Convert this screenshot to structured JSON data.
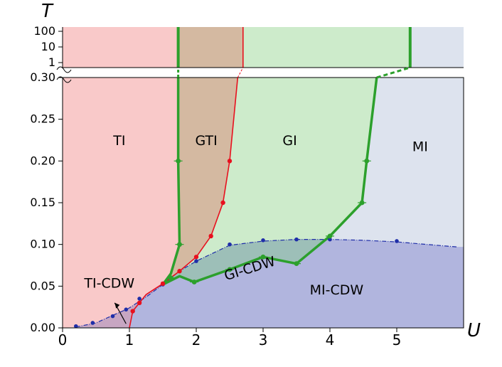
{
  "chart_data": {
    "type": "phase_diagram",
    "xlabel": "U",
    "ylabel": "T",
    "xlim": [
      0,
      6
    ],
    "ylim": [
      0,
      0.3
    ],
    "x_ticks": [
      "0",
      "1",
      "2",
      "3",
      "4",
      "5"
    ],
    "y_ticks": [
      "0.00",
      "0.05",
      "0.10",
      "0.15",
      "0.20",
      "0.25",
      "0.30"
    ],
    "top_panel_ticks": [
      "100",
      "10",
      "1"
    ],
    "regions": [
      {
        "label": "TI",
        "color": "#f9c9c9",
        "label_at": [
          0.85,
          0.219
        ]
      },
      {
        "label": "GTI",
        "color": "#d4b9a1",
        "label_at": [
          2.15,
          0.219
        ]
      },
      {
        "label": "GI",
        "color": "#cdebcb",
        "label_at": [
          3.4,
          0.219
        ]
      },
      {
        "label": "MI",
        "color": "#dde3ee",
        "label_at": [
          5.35,
          0.212
        ]
      },
      {
        "label": "GI-CDW",
        "color": "#9dbfb8",
        "label_at": [
          2.82,
          0.066
        ]
      },
      {
        "label": "MI-CDW",
        "color": "#b1b5de",
        "label_at": [
          4.1,
          0.04
        ]
      },
      {
        "label": "TI-CDW",
        "color": "#c7a6c2",
        "label_at": [
          0.7,
          0.048
        ]
      }
    ],
    "series": [
      {
        "style": "green-thick",
        "color": "#2ca02c",
        "x": [
          1.73,
          1.73,
          1.75,
          1.62,
          1.5
        ],
        "y": [
          0.3,
          0.2,
          0.1,
          0.065,
          0.052
        ]
      },
      {
        "style": "green-thick",
        "color": "#2ca02c",
        "x": [
          4.7,
          4.55,
          4.48,
          4.0
        ],
        "y": [
          0.3,
          0.2,
          0.15,
          0.11
        ]
      },
      {
        "style": "green-thick",
        "color": "#2ca02c",
        "x": [
          1.5,
          1.75,
          1.97,
          2.5,
          3.0,
          3.5,
          4.0
        ],
        "y": [
          0.052,
          0.062,
          0.055,
          0.07,
          0.085,
          0.077,
          0.11
        ]
      },
      {
        "style": "red-thin",
        "color": "#e8101e",
        "x": [
          1.0,
          1.05,
          1.15,
          1.25,
          1.5,
          1.75,
          2.0,
          2.22,
          2.4,
          2.5,
          2.62
        ],
        "y": [
          0.0,
          0.02,
          0.03,
          0.04,
          0.053,
          0.068,
          0.085,
          0.11,
          0.15,
          0.2,
          0.3
        ]
      },
      {
        "style": "blue-dashdot",
        "color": "#1f2ea8",
        "x": [
          0.2,
          0.5,
          0.75,
          0.98,
          1.25,
          1.5,
          1.75,
          2.0,
          2.5,
          3.0,
          3.5,
          4.0,
          4.5,
          5.0,
          5.9
        ],
        "y": [
          0.001,
          0.006,
          0.015,
          0.023,
          0.037,
          0.052,
          0.068,
          0.08,
          0.099,
          0.104,
          0.106,
          0.106,
          0.105,
          0.103,
          0.097
        ]
      }
    ],
    "markers_blue": {
      "x": [
        0.2,
        0.45,
        0.75,
        0.95,
        1.15,
        1.5,
        1.75,
        2.0,
        2.5,
        3.0,
        3.5,
        4.0,
        5.0
      ],
      "y": [
        0.002,
        0.006,
        0.014,
        0.022,
        0.035,
        0.052,
        0.068,
        0.08,
        0.1,
        0.105,
        0.106,
        0.106,
        0.104
      ]
    },
    "markers_red": {
      "x": [
        1.05,
        1.15,
        1.5,
        1.75,
        2.0,
        2.22,
        2.4,
        2.5
      ],
      "y": [
        0.02,
        0.03,
        0.053,
        0.068,
        0.085,
        0.11,
        0.15,
        0.2
      ]
    },
    "markers_green": {
      "x": [
        1.73,
        1.75,
        1.62,
        1.97,
        2.5,
        3.0,
        3.5,
        4.55,
        4.48,
        4.0
      ],
      "y": [
        0.2,
        0.1,
        0.06,
        0.055,
        0.07,
        0.085,
        0.077,
        0.2,
        0.15,
        0.11
      ]
    },
    "phase_lines_top": {
      "green_x": [
        1.73,
        5.2
      ],
      "red_x": [
        2.7
      ]
    }
  }
}
